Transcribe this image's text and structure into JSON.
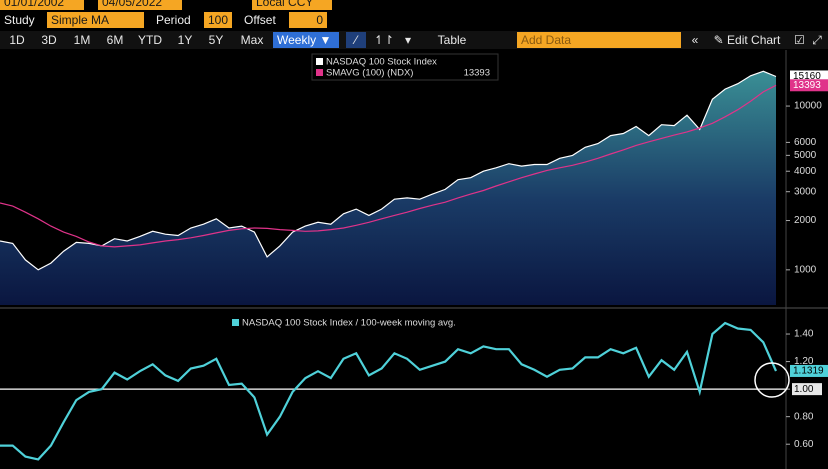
{
  "toolbar": {
    "start_date": "01/01/2002",
    "end_date": "04/05/2022",
    "currency": "Local CCY",
    "study_label": "Study",
    "study": "Simple MA",
    "period_label": "Period",
    "period": "100",
    "offset_label": "Offset",
    "offset": "0",
    "ranges": [
      "1D",
      "3D",
      "1M",
      "6M",
      "YTD",
      "1Y",
      "5Y",
      "Max"
    ],
    "frequency": "Weekly ▼",
    "table": "Table",
    "add_data": "Add Data",
    "edit_chart": "Edit Chart"
  },
  "chart_data": [
    {
      "type": "line",
      "log_scale": true,
      "ylim": [
        610,
        20500
      ],
      "yticks": [
        1000,
        2000,
        3000,
        4000,
        5000,
        6000,
        10000
      ],
      "series": [
        {
          "name": "NASDAQ 100 Stock Index",
          "color": "#ffffff",
          "area": true,
          "values": [
            1500,
            1450,
            1150,
            1000,
            1100,
            1300,
            1470,
            1450,
            1400,
            1550,
            1500,
            1600,
            1720,
            1650,
            1620,
            1800,
            1900,
            2050,
            1800,
            1850,
            1700,
            1200,
            1400,
            1700,
            1850,
            1950,
            1900,
            2200,
            2350,
            2150,
            2350,
            2700,
            2750,
            2700,
            2900,
            3100,
            3550,
            3650,
            4000,
            4200,
            4450,
            4300,
            4400,
            4400,
            4800,
            5000,
            5600,
            5900,
            6600,
            6800,
            7500,
            6600,
            7700,
            7600,
            8800,
            7200,
            11000,
            12700,
            13700,
            15300,
            16300,
            15160
          ]
        },
        {
          "name": "SMAVG (100) (NDX)",
          "color": "#e0338a",
          "values": [
            2560,
            2450,
            2250,
            2050,
            1850,
            1700,
            1600,
            1480,
            1400,
            1380,
            1400,
            1420,
            1460,
            1500,
            1530,
            1570,
            1620,
            1680,
            1740,
            1780,
            1800,
            1790,
            1760,
            1740,
            1720,
            1730,
            1760,
            1800,
            1870,
            1950,
            2050,
            2150,
            2250,
            2370,
            2480,
            2590,
            2750,
            2900,
            3050,
            3250,
            3450,
            3650,
            3850,
            4050,
            4200,
            4350,
            4550,
            4800,
            5100,
            5400,
            5750,
            6050,
            6350,
            6650,
            6950,
            7350,
            7850,
            8600,
            9500,
            10700,
            12200,
            13393
          ]
        }
      ]
    },
    {
      "type": "line",
      "ylim": [
        0.42,
        1.56
      ],
      "yticks": [
        {
          "value": 0.6,
          "label": "0.60"
        },
        {
          "value": 0.8,
          "label": "0.80"
        },
        {
          "value": 1,
          "label": "1.00"
        },
        {
          "value": 1.2,
          "label": "1.20"
        },
        {
          "value": 1.4,
          "label": "1.40"
        }
      ],
      "reference_line": 1,
      "series": [
        {
          "name": "NASDAQ 100 Stock Index / 100-week moving avg.",
          "color": "#4fd1d9",
          "values": [
            0.59,
            0.59,
            0.51,
            0.49,
            0.59,
            0.76,
            0.92,
            0.98,
            1.0,
            1.12,
            1.07,
            1.13,
            1.18,
            1.1,
            1.06,
            1.15,
            1.17,
            1.22,
            1.03,
            1.04,
            0.94,
            0.67,
            0.8,
            0.98,
            1.08,
            1.13,
            1.08,
            1.22,
            1.26,
            1.1,
            1.15,
            1.26,
            1.22,
            1.14,
            1.17,
            1.2,
            1.29,
            1.26,
            1.31,
            1.29,
            1.29,
            1.18,
            1.14,
            1.09,
            1.14,
            1.15,
            1.23,
            1.23,
            1.29,
            1.26,
            1.3,
            1.09,
            1.21,
            1.14,
            1.27,
            0.98,
            1.4,
            1.48,
            1.44,
            1.43,
            1.34,
            1.1319
          ]
        }
      ]
    }
  ]
}
